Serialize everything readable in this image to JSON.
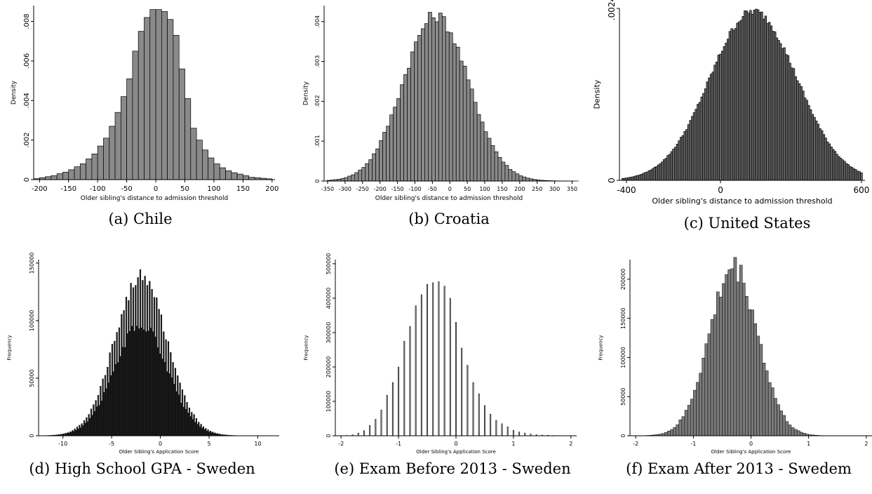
{
  "chart_data": [
    {
      "id": "chile",
      "type": "bar",
      "title": "",
      "xlabel": "Older sibling's distance to admission threshold",
      "ylabel": "Density",
      "xlim": [
        -210,
        205
      ],
      "ylim": [
        0,
        0.0088
      ],
      "xticks": [
        "-200",
        "-150",
        "-100",
        "-50",
        "0",
        "50",
        "100",
        "150",
        "200"
      ],
      "xtick_values": [
        -200,
        -150,
        -100,
        -50,
        0,
        50,
        100,
        150,
        200
      ],
      "yticks": [
        "0",
        ".002",
        ".004",
        ".006",
        ".008"
      ],
      "ytick_values": [
        0,
        0.002,
        0.004,
        0.006,
        0.008
      ],
      "bin_width": 10,
      "x": [
        -205,
        -195,
        -185,
        -175,
        -165,
        -155,
        -145,
        -135,
        -125,
        -115,
        -105,
        -95,
        -85,
        -75,
        -65,
        -55,
        -45,
        -35,
        -25,
        -15,
        -5,
        5,
        15,
        25,
        35,
        45,
        55,
        65,
        75,
        85,
        95,
        105,
        115,
        125,
        135,
        145,
        155,
        165,
        175,
        185,
        195
      ],
      "values": [
        5e-05,
        0.0001,
        0.00015,
        0.0002,
        0.0003,
        0.00038,
        0.0005,
        0.00065,
        0.0008,
        0.00105,
        0.0013,
        0.0017,
        0.0021,
        0.0027,
        0.0034,
        0.0042,
        0.0051,
        0.0065,
        0.0075,
        0.0082,
        0.0086,
        0.0086,
        0.0085,
        0.0081,
        0.0073,
        0.0056,
        0.0041,
        0.0026,
        0.002,
        0.0015,
        0.0011,
        0.0008,
        0.0006,
        0.00045,
        0.00035,
        0.00028,
        0.0002,
        0.00012,
        0.0001,
        7e-05,
        4e-05
      ],
      "bar_color": "#8a8a8a",
      "caption": "(a) Chile"
    },
    {
      "id": "croatia",
      "type": "bar",
      "title": "",
      "xlabel": "Older sibling's distance to admission threshold",
      "ylabel": "Density",
      "xlim": [
        -360,
        355
      ],
      "ylim": [
        0,
        0.0044
      ],
      "xticks": [
        "-350",
        "-300",
        "-250",
        "-200",
        "-150",
        "-100",
        "-50",
        "0",
        "50",
        "100",
        "150",
        "200",
        "250",
        "300",
        "350"
      ],
      "xtick_values": [
        -350,
        -300,
        -250,
        -200,
        -150,
        -100,
        -50,
        0,
        50,
        100,
        150,
        200,
        250,
        300,
        350
      ],
      "yticks": [
        "0",
        ".001",
        ".002",
        ".003",
        ".004"
      ],
      "ytick_values": [
        0,
        0.001,
        0.002,
        0.003,
        0.004
      ],
      "generator": {
        "kind": "normal",
        "n": 72,
        "start": -352,
        "bin_width": 10,
        "mean": -40,
        "sd": 93,
        "peak": 0.00415,
        "jitter": 0.04
      },
      "bar_color": "#8a8a8a",
      "caption": "(b) Croatia"
    },
    {
      "id": "united-states",
      "type": "bar",
      "title": "",
      "xlabel": "Older sibling's distance to admission threshold",
      "ylabel": "Density",
      "xlim": [
        -430,
        615
      ],
      "ylim": [
        0,
        0.0024
      ],
      "xticks": [
        "-400",
        "0",
        "600"
      ],
      "xtick_values": [
        -400,
        0,
        600
      ],
      "yticks": [
        "0",
        ".0024"
      ],
      "ytick_values": [
        0,
        0.0024
      ],
      "generator": {
        "kind": "normal",
        "n": 128,
        "start": -420,
        "bin_width": 8,
        "mean": 140,
        "sd": 185,
        "peak": 0.00236,
        "jitter": 0.025
      },
      "bar_color": "#666666",
      "caption": "(c) United States"
    },
    {
      "id": "sweden-gpa",
      "type": "bar",
      "title": "",
      "xlabel": "Older Sibling's Application Score",
      "ylabel": "Frequency",
      "xlim": [
        -12.5,
        12.2
      ],
      "ylim": [
        0,
        153000
      ],
      "xticks": [
        "-10",
        "-5",
        "0",
        "5",
        "10"
      ],
      "xtick_values": [
        -10,
        -5,
        0,
        5,
        10
      ],
      "yticks": [
        "0",
        "50000",
        "100000",
        "150000"
      ],
      "ytick_values": [
        0,
        50000,
        100000,
        150000
      ],
      "generator": {
        "kind": "normal-alt",
        "n": 200,
        "start": -12.2,
        "bin_width": 0.12,
        "mean": -2,
        "sd": 2.7,
        "peak": 138000,
        "alt_factor": 0.7,
        "jitter": 0.05
      },
      "bar_color": "#222222",
      "caption": "(d) High School GPA - Sweden"
    },
    {
      "id": "sweden-exam-before",
      "type": "bar",
      "title": "",
      "xlabel": "Older Sibling's Application Score",
      "ylabel": "Frequency",
      "xlim": [
        -2.1,
        2.1
      ],
      "ylim": [
        0,
        512000
      ],
      "xticks": [
        "-2",
        "-1",
        "0",
        "1",
        "2"
      ],
      "xtick_values": [
        -2,
        -1,
        0,
        1,
        2
      ],
      "yticks": [
        "0",
        "100000",
        "200000",
        "300000",
        "400000",
        "500000"
      ],
      "ytick_values": [
        0,
        100000,
        200000,
        300000,
        400000,
        500000
      ],
      "bin_width": 0.04,
      "x": [
        -1.9,
        -1.8,
        -1.7,
        -1.6,
        -1.5,
        -1.4,
        -1.3,
        -1.2,
        -1.1,
        -1.0,
        -0.9,
        -0.8,
        -0.7,
        -0.6,
        -0.5,
        -0.4,
        -0.3,
        -0.2,
        -0.1,
        0.0,
        0.1,
        0.2,
        0.3,
        0.4,
        0.5,
        0.6,
        0.7,
        0.8,
        0.9,
        1.0,
        1.1,
        1.2,
        1.3,
        1.4,
        1.5,
        1.6,
        1.7,
        1.8,
        1.9
      ],
      "values": [
        1000,
        3000,
        8000,
        15000,
        30000,
        48000,
        75000,
        118000,
        155000,
        200000,
        275000,
        318000,
        378000,
        410000,
        440000,
        445000,
        448000,
        435000,
        400000,
        330000,
        255000,
        205000,
        155000,
        122000,
        88000,
        63000,
        45000,
        35000,
        26000,
        16000,
        11000,
        8000,
        5000,
        3000,
        2000,
        1500,
        1000,
        600,
        300
      ],
      "bar_color": "#8a8a8a",
      "caption": "(e) Exam Before 2013 - Sweden"
    },
    {
      "id": "sweden-exam-after",
      "type": "bar",
      "title": "",
      "xlabel": "Older Sibling's Application Score",
      "ylabel": "Frequency",
      "xlim": [
        -2.1,
        2.1
      ],
      "ylim": [
        0,
        225000
      ],
      "xticks": [
        "-2",
        "-1",
        "0",
        "1",
        "2"
      ],
      "xtick_values": [
        -2,
        -1,
        0,
        1,
        2
      ],
      "yticks": [
        "0",
        "50000",
        "100000",
        "150000",
        "200000"
      ],
      "ytick_values": [
        0,
        50000,
        100000,
        150000,
        200000
      ],
      "generator": {
        "kind": "normal",
        "n": 78,
        "start": -1.95,
        "bin_width": 0.05,
        "mean": -0.3,
        "sd": 0.42,
        "peak": 215000,
        "jitter": 0.08
      },
      "bar_color": "#7a7a7a",
      "caption": "(f) Exam After 2013 - Swedem"
    }
  ]
}
